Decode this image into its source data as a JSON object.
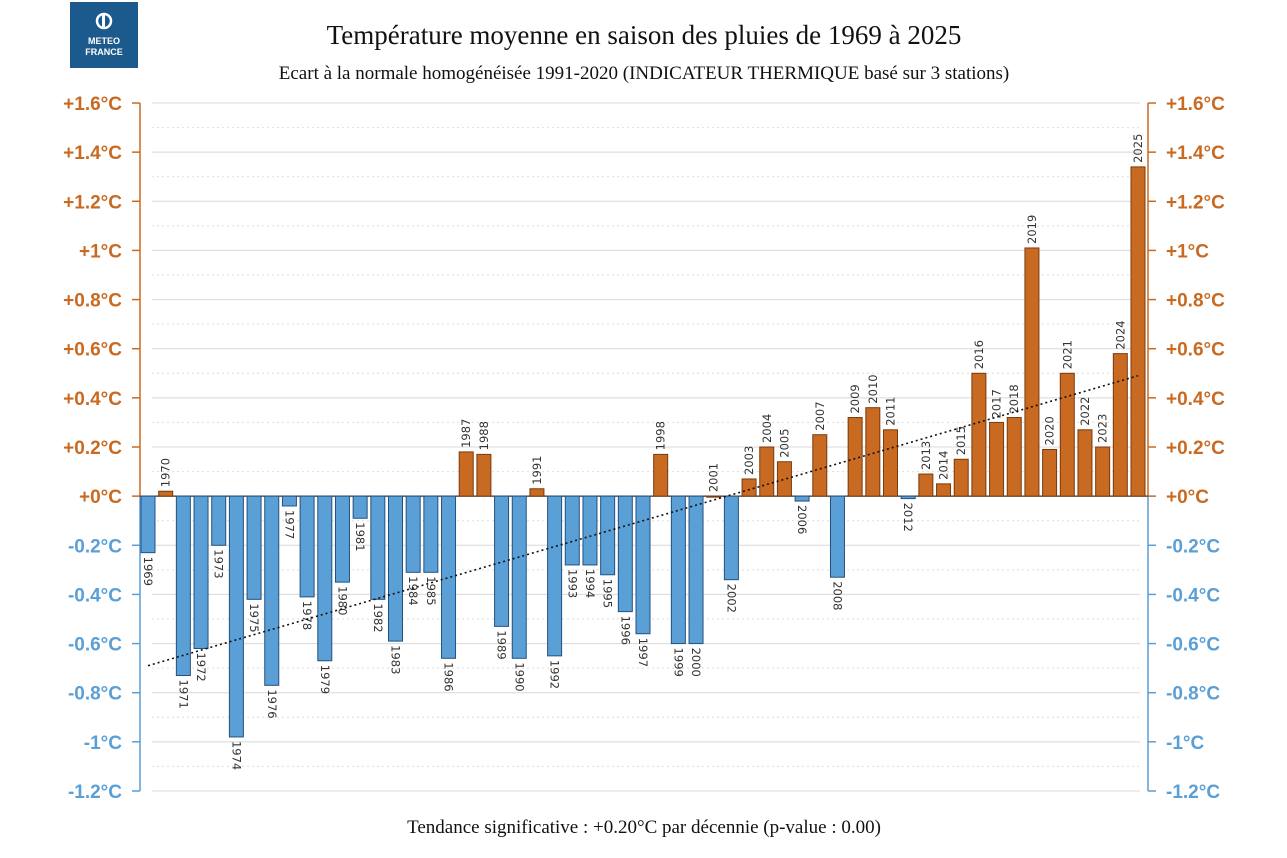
{
  "logo": {
    "line1": "METEO",
    "line2": "FRANCE"
  },
  "chart_data": {
    "type": "bar",
    "title": "Température moyenne en saison des pluies de 1969 à 2025",
    "subtitle": "Ecart à la normale homogénéisée 1991-2020 (INDICATEUR THERMIQUE basé sur 3 stations)",
    "footer": "Tendance significative : +0.20°C par décennie (p-value : 0.00)",
    "ylim": [
      -1.2,
      1.6
    ],
    "yticks": [
      1.6,
      1.4,
      1.2,
      1.0,
      0.8,
      0.6,
      0.4,
      0.2,
      0.0,
      -0.2,
      -0.4,
      -0.6,
      -0.8,
      -1.0,
      -1.2
    ],
    "ytick_labels": [
      "+1.6°C",
      "+1.4°C",
      "+1.2°C",
      "+1°C",
      "+0.8°C",
      "+0.6°C",
      "+0.4°C",
      "+0.2°C",
      "+0°C",
      "-0.2°C",
      "-0.4°C",
      "-0.6°C",
      "-0.8°C",
      "-1°C",
      "-1.2°C"
    ],
    "grid": true,
    "colors": {
      "positive": "#c96a22",
      "negative": "#5a9fd6",
      "positive_edge": "#7a3a0c",
      "negative_edge": "#24527e",
      "trend": "#111111",
      "grid": "#d8d8d8"
    },
    "categories": [
      "1969",
      "1970",
      "1971",
      "1972",
      "1973",
      "1974",
      "1975",
      "1976",
      "1977",
      "1978",
      "1979",
      "1980",
      "1981",
      "1982",
      "1983",
      "1984",
      "1985",
      "1986",
      "1987",
      "1988",
      "1989",
      "1990",
      "1991",
      "1992",
      "1993",
      "1994",
      "1995",
      "1996",
      "1997",
      "1998",
      "1999",
      "2000",
      "2001",
      "2002",
      "2003",
      "2004",
      "2005",
      "2006",
      "2007",
      "2008",
      "2009",
      "2010",
      "2011",
      "2012",
      "2013",
      "2014",
      "2015",
      "2016",
      "2017",
      "2018",
      "2019",
      "2020",
      "2021",
      "2022",
      "2023",
      "2024",
      "2025"
    ],
    "values": [
      -0.23,
      0.02,
      -0.73,
      -0.62,
      -0.2,
      -0.98,
      -0.42,
      -0.77,
      -0.04,
      -0.41,
      -0.67,
      -0.35,
      -0.09,
      -0.42,
      -0.59,
      -0.31,
      -0.31,
      -0.66,
      0.18,
      0.17,
      -0.53,
      -0.66,
      0.03,
      -0.65,
      -0.28,
      -0.28,
      -0.32,
      -0.47,
      -0.56,
      0.17,
      -0.6,
      -0.6,
      0.0,
      -0.34,
      0.07,
      0.2,
      0.14,
      -0.02,
      0.25,
      -0.33,
      0.32,
      0.36,
      0.27,
      -0.01,
      0.09,
      0.05,
      0.15,
      0.5,
      0.3,
      0.32,
      1.01,
      0.19,
      0.5,
      0.27,
      0.2,
      0.58,
      1.34
    ],
    "trend": {
      "start": -0.69,
      "end": 0.49,
      "style": "dotted"
    }
  }
}
